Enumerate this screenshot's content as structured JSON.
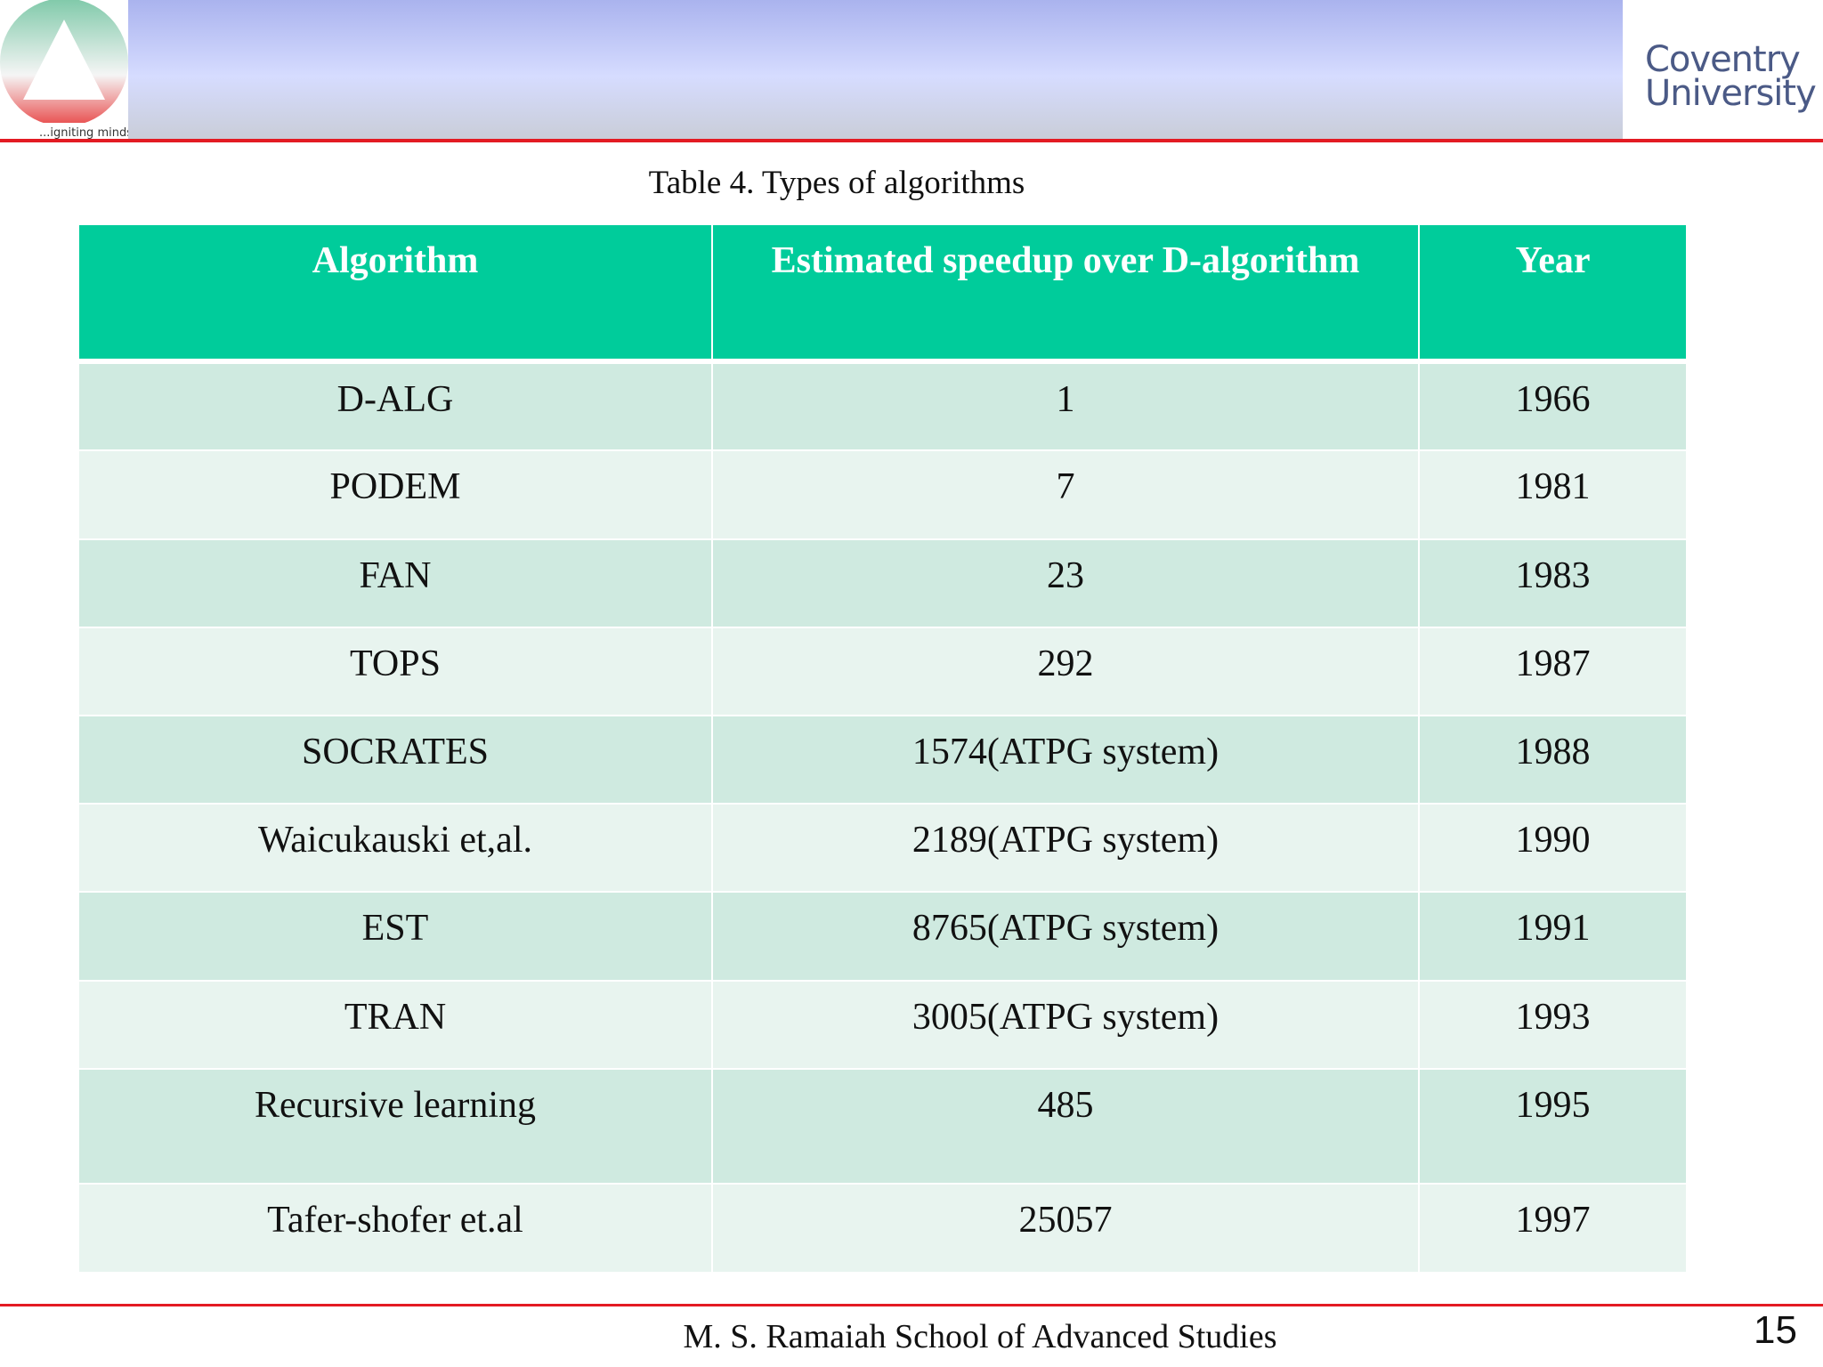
{
  "header": {
    "left_logo_text": "...igniting minds",
    "right_logo": [
      "Coventry",
      "University"
    ]
  },
  "table": {
    "caption": "Table 4. Types of algorithms",
    "columns": [
      "Algorithm",
      "Estimated  speedup over D-algorithm",
      "Year"
    ],
    "rows": [
      [
        "D-ALG",
        "1",
        "1966"
      ],
      [
        "PODEM",
        "7",
        "1981"
      ],
      [
        "FAN",
        "23",
        "1983"
      ],
      [
        "TOPS",
        "292",
        "1987"
      ],
      [
        "SOCRATES",
        "1574(ATPG system)",
        "1988"
      ],
      [
        "Waicukauski et,al.",
        "2189(ATPG system)",
        "1990"
      ],
      [
        "EST",
        "8765(ATPG system)",
        "1991"
      ],
      [
        "TRAN",
        "3005(ATPG system)",
        "1993"
      ],
      [
        "Recursive learning",
        "485",
        "1995"
      ],
      [
        "Tafer-shofer et.al",
        "25057",
        "1997"
      ]
    ]
  },
  "footer": {
    "text": "M. S. Ramaiah School of Advanced Studies",
    "page": "15"
  }
}
